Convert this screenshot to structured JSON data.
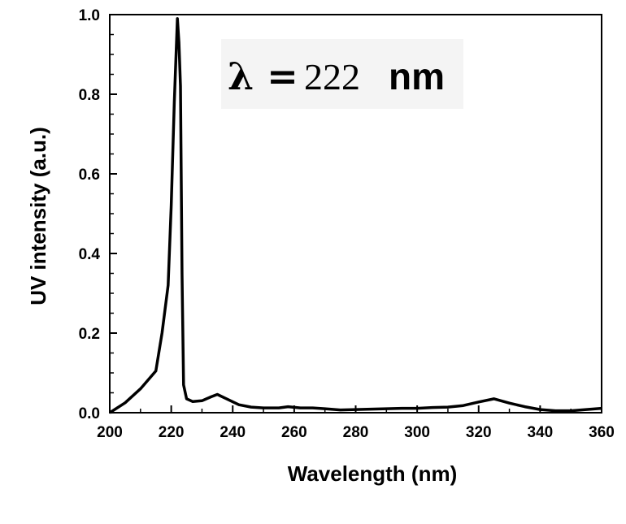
{
  "chart_data": {
    "type": "line",
    "title": "",
    "xlabel": "Wavelength (nm)",
    "ylabel": "UV intensity (a.u.)",
    "xlim": [
      200,
      360
    ],
    "ylim": [
      0,
      1.0
    ],
    "x_ticks": [
      200,
      220,
      240,
      260,
      280,
      300,
      320,
      340,
      360
    ],
    "x_tick_labels": [
      "200",
      "220",
      "240",
      "260",
      "280",
      "300",
      "320",
      "340",
      "360"
    ],
    "y_ticks": [
      0.0,
      0.2,
      0.4,
      0.6,
      0.8,
      1.0
    ],
    "y_tick_labels": [
      "0.0",
      "0.2",
      "0.4",
      "0.6",
      "0.8",
      "1.0"
    ],
    "grid": false,
    "legend": "none",
    "annotation": {
      "symbol": "λ =",
      "value": "222",
      "unit": "nm"
    },
    "series": [
      {
        "x": [
          200,
          205,
          210,
          215,
          217,
          219,
          220,
          221,
          222,
          222.5,
          223,
          223.5,
          224,
          225,
          227,
          230,
          233,
          235,
          238,
          242,
          246,
          250,
          255,
          258,
          262,
          266,
          270,
          275,
          280,
          285,
          290,
          295,
          300,
          305,
          310,
          315,
          320,
          325,
          330,
          335,
          340,
          345,
          350,
          355,
          360
        ],
        "y": [
          0.0,
          0.025,
          0.06,
          0.105,
          0.2,
          0.32,
          0.52,
          0.78,
          0.99,
          0.93,
          0.82,
          0.35,
          0.07,
          0.035,
          0.028,
          0.03,
          0.04,
          0.046,
          0.035,
          0.02,
          0.014,
          0.012,
          0.012,
          0.015,
          0.012,
          0.012,
          0.01,
          0.007,
          0.008,
          0.009,
          0.01,
          0.011,
          0.011,
          0.013,
          0.014,
          0.018,
          0.027,
          0.035,
          0.024,
          0.015,
          0.008,
          0.005,
          0.005,
          0.008,
          0.011
        ]
      }
    ]
  }
}
